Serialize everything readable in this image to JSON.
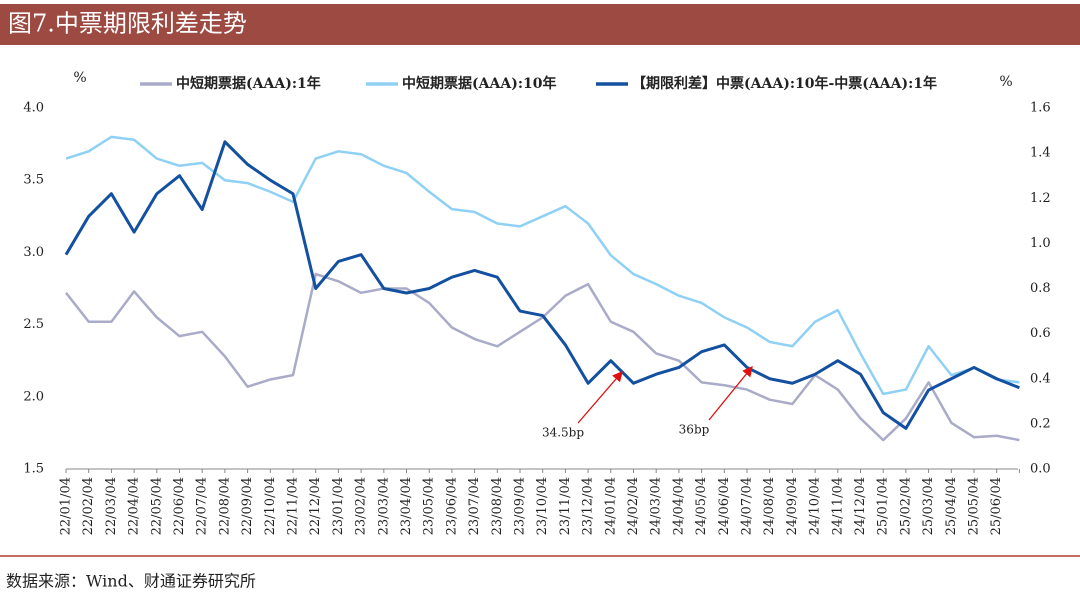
{
  "header": {
    "title": "图7.中票期限利差走势"
  },
  "chart_data": {
    "type": "line",
    "y_label": "%",
    "y2_label": "%",
    "categories": [
      "22/01/04",
      "22/02/04",
      "22/03/04",
      "22/04/04",
      "22/05/04",
      "22/06/04",
      "22/07/04",
      "22/08/04",
      "22/09/04",
      "22/10/04",
      "22/11/04",
      "22/12/04",
      "23/01/04",
      "23/02/04",
      "23/03/04",
      "23/04/04",
      "23/05/04",
      "23/06/04",
      "23/07/04",
      "23/08/04",
      "23/09/04",
      "23/10/04",
      "23/11/04",
      "23/12/04",
      "24/01/04",
      "24/02/04",
      "24/03/04",
      "24/04/04",
      "24/05/04",
      "24/06/04",
      "24/07/04",
      "24/08/04",
      "24/09/04",
      "24/10/04",
      "24/11/04",
      "24/12/04",
      "25/01/04",
      "25/02/04",
      "25/03/04",
      "25/04/04",
      "25/05/04",
      "25/06/04",
      null
    ],
    "series": [
      {
        "name": "中短期票据(AAA):1年",
        "color": "#a9abc8",
        "values": [
          2.72,
          2.52,
          2.52,
          2.73,
          2.55,
          2.42,
          2.45,
          2.28,
          2.07,
          2.12,
          2.15,
          2.85,
          2.8,
          2.72,
          2.75,
          2.75,
          2.65,
          2.48,
          2.4,
          2.35,
          2.45,
          2.55,
          2.7,
          2.78,
          2.52,
          2.45,
          2.3,
          2.25,
          2.1,
          2.08,
          2.05,
          1.98,
          1.95,
          2.15,
          2.05,
          1.85,
          1.7,
          1.85,
          2.1,
          1.82,
          1.72,
          1.73,
          1.7
        ]
      },
      {
        "name": "中短期票据(AAA):10年",
        "color": "#8fd0f5",
        "values": [
          3.65,
          3.7,
          3.8,
          3.78,
          3.65,
          3.6,
          3.62,
          3.5,
          3.48,
          3.42,
          3.35,
          3.65,
          3.7,
          3.68,
          3.6,
          3.55,
          3.42,
          3.3,
          3.28,
          3.2,
          3.18,
          3.25,
          3.32,
          3.2,
          2.98,
          2.85,
          2.78,
          2.7,
          2.65,
          2.55,
          2.48,
          2.38,
          2.35,
          2.52,
          2.6,
          2.3,
          2.02,
          2.05,
          2.35,
          2.15,
          2.2,
          2.12,
          2.1
        ]
      },
      {
        "name": "【期限利差】中票(AAA):10年-中票(AAA):1年",
        "color": "#1450a0",
        "axis": "y2",
        "values": [
          0.95,
          1.12,
          1.22,
          1.05,
          1.22,
          1.3,
          1.15,
          1.45,
          1.35,
          1.28,
          1.22,
          0.8,
          0.92,
          0.95,
          0.8,
          0.78,
          0.8,
          0.85,
          0.88,
          0.85,
          0.7,
          0.68,
          0.55,
          0.38,
          0.48,
          0.38,
          0.42,
          0.45,
          0.52,
          0.55,
          0.45,
          0.4,
          0.38,
          0.42,
          0.48,
          0.42,
          0.25,
          0.18,
          0.35,
          0.4,
          0.45,
          0.4,
          0.36
        ]
      }
    ],
    "ylim": [
      1.5,
      4.0
    ],
    "yticks": [
      1.5,
      {
        "value": 2,
        "label": "2.0"
      },
      2.5,
      {
        "value": 3,
        "label": "3.0"
      },
      3.5,
      {
        "value": 4,
        "label": "4.0"
      }
    ],
    "y2lim": [
      0,
      1.6
    ],
    "y2ticks": [
      {
        "value": 0,
        "label": "0.0"
      },
      0.2,
      0.4,
      0.6,
      0.8,
      {
        "value": 1,
        "label": "1.0"
      },
      1.2,
      1.4,
      1.6
    ],
    "annotations": [
      "34.5bp",
      "36bp"
    ]
  },
  "footer": {
    "source": "数据来源：Wind、财通证券研究所"
  }
}
